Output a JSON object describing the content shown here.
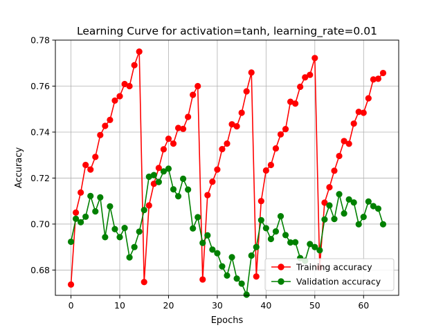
{
  "chart_data": {
    "type": "line",
    "title": "Learning Curve for activation=tanh, learning_rate=0.01",
    "xlabel": "Epochs",
    "ylabel": "Accuracy",
    "xlim": [
      -3.2,
      67.2
    ],
    "ylim": [
      0.669,
      0.78
    ],
    "xticks": [
      0,
      10,
      20,
      30,
      40,
      50,
      60
    ],
    "yticks": [
      0.68,
      0.7,
      0.72,
      0.74,
      0.76,
      0.78
    ],
    "xtick_labels": [
      "0",
      "10",
      "20",
      "30",
      "40",
      "50",
      "60"
    ],
    "ytick_labels": [
      "0.68",
      "0.70",
      "0.72",
      "0.74",
      "0.76",
      "0.78"
    ],
    "grid": true,
    "legend_position": "lower-right",
    "x": [
      0,
      1,
      2,
      3,
      4,
      5,
      6,
      7,
      8,
      9,
      10,
      11,
      12,
      13,
      14,
      15,
      16,
      17,
      18,
      19,
      20,
      21,
      22,
      23,
      24,
      25,
      26,
      27,
      28,
      29,
      30,
      31,
      32,
      33,
      34,
      35,
      36,
      37,
      38,
      39,
      40,
      41,
      42,
      43,
      44,
      45,
      46,
      47,
      48,
      49,
      50,
      51,
      52,
      53,
      54,
      55,
      56,
      57,
      58,
      59,
      60,
      61,
      62,
      63,
      64
    ],
    "series": [
      {
        "name": "Training accuracy",
        "color": "#ff0000",
        "values": [
          0.6737,
          0.705,
          0.7137,
          0.7257,
          0.7237,
          0.7292,
          0.7387,
          0.7427,
          0.7453,
          0.7537,
          0.7556,
          0.7609,
          0.76,
          0.7691,
          0.775,
          0.6748,
          0.7081,
          0.7175,
          0.7244,
          0.7325,
          0.7371,
          0.735,
          0.7418,
          0.7414,
          0.7466,
          0.7562,
          0.76,
          0.6759,
          0.7126,
          0.7184,
          0.7237,
          0.7326,
          0.735,
          0.7434,
          0.7425,
          0.7484,
          0.7577,
          0.7659,
          0.6772,
          0.71,
          0.7233,
          0.7257,
          0.7329,
          0.739,
          0.7413,
          0.7532,
          0.7524,
          0.7597,
          0.7638,
          0.7649,
          0.7722,
          0.6811,
          0.7093,
          0.716,
          0.7232,
          0.7296,
          0.7361,
          0.7349,
          0.7437,
          0.7488,
          0.7484,
          0.7547,
          0.7629,
          0.7632,
          0.7657
        ]
      },
      {
        "name": "Validation accuracy",
        "color": "#008000",
        "values": [
          0.6923,
          0.7023,
          0.7008,
          0.7032,
          0.7122,
          0.7055,
          0.7116,
          0.6943,
          0.7077,
          0.6978,
          0.6943,
          0.6983,
          0.6855,
          0.69,
          0.6967,
          0.7061,
          0.7206,
          0.7213,
          0.7183,
          0.7229,
          0.7241,
          0.7151,
          0.7121,
          0.7197,
          0.715,
          0.6981,
          0.703,
          0.6918,
          0.6951,
          0.6889,
          0.6873,
          0.6816,
          0.6776,
          0.6856,
          0.6763,
          0.6741,
          0.6693,
          0.6863,
          0.69,
          0.7017,
          0.6982,
          0.6935,
          0.6968,
          0.7034,
          0.6952,
          0.692,
          0.6921,
          0.6852,
          0.684,
          0.6913,
          0.69,
          0.6886,
          0.702,
          0.7081,
          0.7022,
          0.713,
          0.7046,
          0.7107,
          0.7094,
          0.6999,
          0.7031,
          0.7098,
          0.7078,
          0.7067,
          0.6999
        ]
      }
    ]
  }
}
